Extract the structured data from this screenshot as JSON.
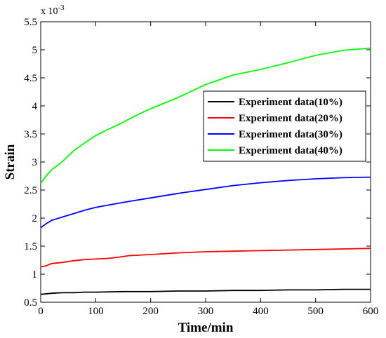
{
  "chart_data": {
    "type": "line",
    "xlabel": "Time/min",
    "ylabel": "Strain",
    "y_multiplier": "x 10",
    "y_multiplier_exp": "-3",
    "xlim": [
      0,
      600
    ],
    "ylim": [
      0.5,
      5.5
    ],
    "x_ticks": [
      0,
      100,
      200,
      300,
      400,
      500,
      600
    ],
    "y_ticks": [
      0.5,
      1,
      1.5,
      2,
      2.5,
      3,
      3.5,
      4,
      4.5,
      5,
      5.5
    ],
    "grid": false,
    "legend_position": "center-right",
    "series": [
      {
        "name": "Experiment data(10%)",
        "color": "#000000",
        "x": [
          0,
          20,
          40,
          60,
          80,
          100,
          150,
          200,
          250,
          300,
          350,
          400,
          450,
          500,
          550,
          600
        ],
        "y": [
          0.64,
          0.66,
          0.67,
          0.67,
          0.68,
          0.68,
          0.69,
          0.69,
          0.7,
          0.7,
          0.71,
          0.71,
          0.72,
          0.72,
          0.73,
          0.73
        ]
      },
      {
        "name": "Experiment data(20%)",
        "color": "#ff0000",
        "x": [
          0,
          10,
          20,
          40,
          60,
          80,
          100,
          120,
          140,
          160,
          200,
          250,
          300,
          350,
          400,
          450,
          500,
          550,
          600
        ],
        "y": [
          1.13,
          1.15,
          1.19,
          1.21,
          1.24,
          1.26,
          1.27,
          1.28,
          1.3,
          1.33,
          1.35,
          1.38,
          1.4,
          1.41,
          1.42,
          1.43,
          1.44,
          1.45,
          1.46
        ]
      },
      {
        "name": "Experiment data(30%)",
        "color": "#0000ff",
        "x": [
          0,
          10,
          20,
          40,
          60,
          80,
          100,
          150,
          200,
          250,
          300,
          350,
          400,
          450,
          500,
          550,
          600
        ],
        "y": [
          1.83,
          1.9,
          1.96,
          2.02,
          2.08,
          2.14,
          2.19,
          2.28,
          2.36,
          2.44,
          2.51,
          2.58,
          2.63,
          2.67,
          2.7,
          2.72,
          2.73
        ]
      },
      {
        "name": "Experiment data(40%)",
        "color": "#00ff00",
        "x": [
          0,
          10,
          20,
          40,
          60,
          80,
          100,
          120,
          140,
          160,
          180,
          200,
          250,
          300,
          350,
          400,
          450,
          500,
          550,
          600
        ],
        "y": [
          2.62,
          2.75,
          2.86,
          3.01,
          3.2,
          3.34,
          3.47,
          3.57,
          3.66,
          3.76,
          3.86,
          3.95,
          4.15,
          4.38,
          4.55,
          4.65,
          4.77,
          4.9,
          4.99,
          5.03
        ]
      }
    ]
  }
}
